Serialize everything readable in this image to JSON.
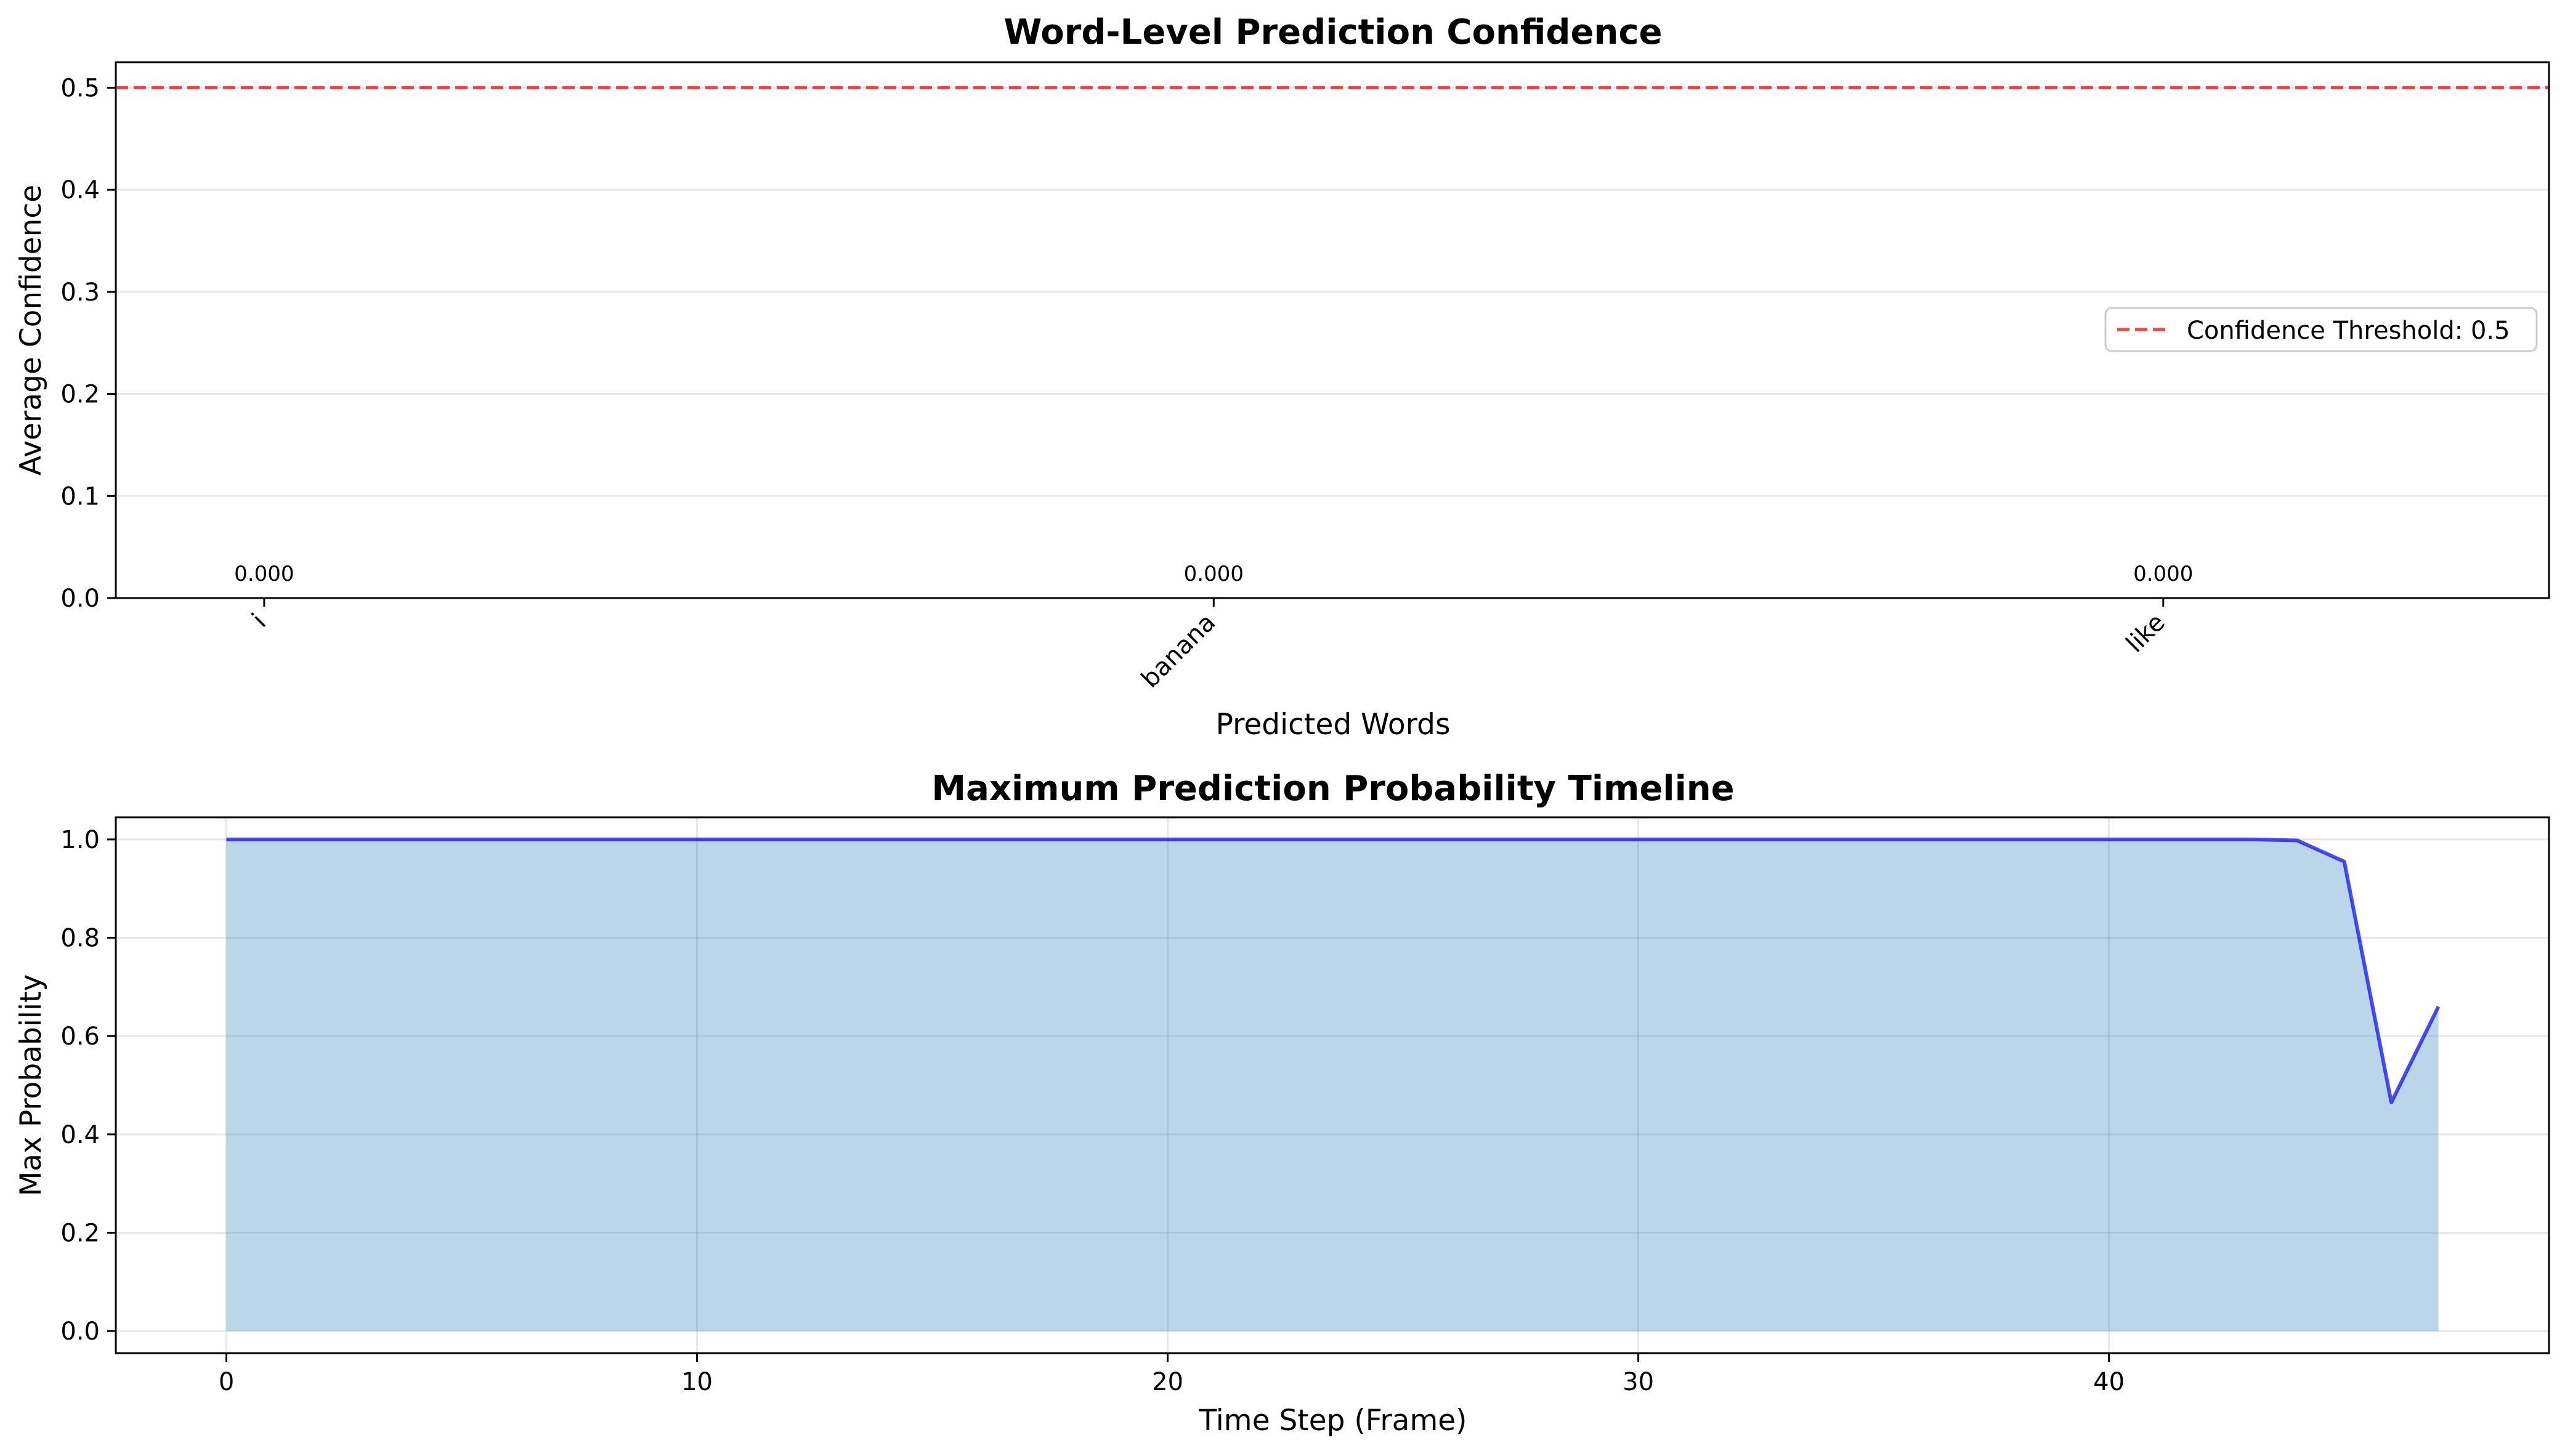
{
  "chart_data": [
    {
      "type": "bar",
      "title": "Word-Level Prediction Confidence",
      "xlabel": "Predicted Words",
      "ylabel": "Average Confidence",
      "categories": [
        "i",
        "banana",
        "like"
      ],
      "values": [
        0.0,
        0.0,
        0.0
      ],
      "value_labels": [
        "0.000",
        "0.000",
        "0.000"
      ],
      "ylim": [
        0,
        0.525
      ],
      "yticks": [
        "0.0",
        "0.1",
        "0.2",
        "0.3",
        "0.4",
        "0.5"
      ],
      "threshold": {
        "value": 0.5,
        "label": "Confidence Threshold: 0.5",
        "color": "#ff0000",
        "style": "dashed"
      },
      "grid": "y",
      "legend": "center-right"
    },
    {
      "type": "area",
      "title": "Maximum Prediction Probability Timeline",
      "xlabel": "Time Step (Frame)",
      "ylabel": "Max Probability",
      "x": [
        0,
        1,
        2,
        3,
        4,
        5,
        6,
        7,
        8,
        9,
        10,
        11,
        12,
        13,
        14,
        15,
        16,
        17,
        18,
        19,
        20,
        21,
        22,
        23,
        24,
        25,
        26,
        27,
        28,
        29,
        30,
        31,
        32,
        33,
        34,
        35,
        36,
        37,
        38,
        39,
        40,
        41,
        42,
        43,
        44,
        45,
        46,
        47
      ],
      "y": [
        1.0,
        1.0,
        1.0,
        1.0,
        1.0,
        1.0,
        1.0,
        1.0,
        1.0,
        1.0,
        1.0,
        1.0,
        1.0,
        1.0,
        1.0,
        1.0,
        1.0,
        1.0,
        1.0,
        1.0,
        1.0,
        1.0,
        1.0,
        1.0,
        1.0,
        1.0,
        1.0,
        1.0,
        1.0,
        1.0,
        1.0,
        1.0,
        1.0,
        1.0,
        1.0,
        1.0,
        1.0,
        1.0,
        1.0,
        1.0,
        1.0,
        1.0,
        1.0,
        1.0,
        0.998,
        0.955,
        0.465,
        0.66
      ],
      "xlim": [
        -2.35,
        49.35
      ],
      "ylim": [
        -0.045,
        1.045
      ],
      "xticks": [
        0,
        10,
        20,
        30,
        40
      ],
      "xtick_labels": [
        "0",
        "10",
        "20",
        "30",
        "40"
      ],
      "yticks": [
        0.0,
        0.2,
        0.4,
        0.6,
        0.8,
        1.0
      ],
      "ytick_labels": [
        "0.0",
        "0.2",
        "0.4",
        "0.6",
        "0.8",
        "1.0"
      ],
      "line_color": "#0000ff",
      "fill_color": "#1f77b4",
      "grid": "both"
    }
  ]
}
